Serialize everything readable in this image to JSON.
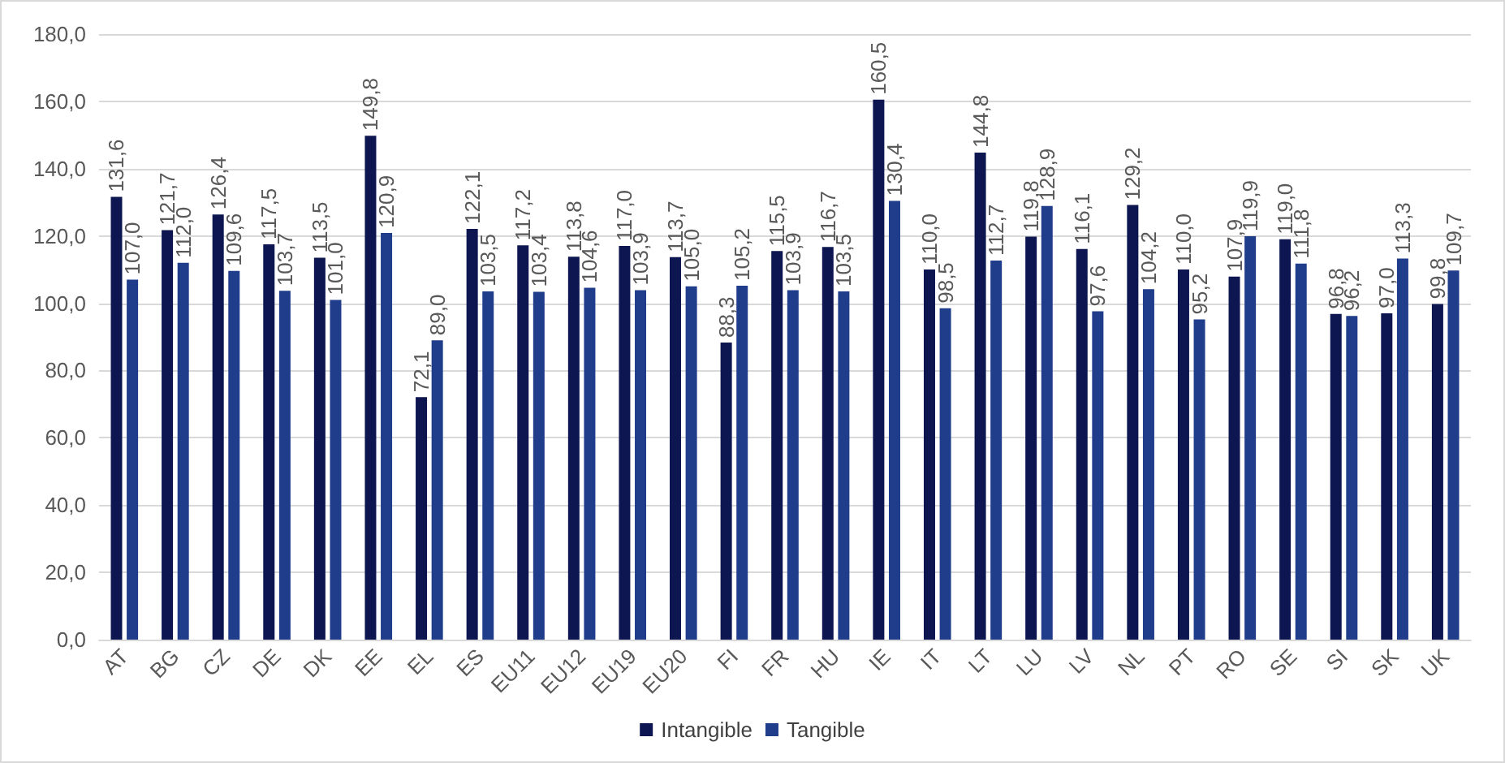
{
  "chart_data": {
    "type": "bar",
    "categories": [
      "AT",
      "BG",
      "CZ",
      "DE",
      "DK",
      "EE",
      "EL",
      "ES",
      "EU11",
      "EU12",
      "EU19",
      "EU20",
      "FI",
      "FR",
      "HU",
      "IE",
      "IT",
      "LT",
      "LU",
      "LV",
      "NL",
      "PT",
      "RO",
      "SE",
      "SI",
      "SK",
      "UK"
    ],
    "series": [
      {
        "name": "Intangible",
        "color": "#0d1650",
        "values": [
          131.6,
          121.7,
          126.4,
          117.5,
          113.5,
          149.8,
          72.1,
          122.1,
          117.2,
          113.8,
          117.0,
          113.7,
          88.3,
          115.5,
          116.7,
          160.5,
          110.0,
          144.8,
          119.8,
          116.1,
          129.2,
          110.0,
          107.9,
          119.0,
          96.8,
          97.0,
          99.8
        ],
        "value_labels": [
          "131,6",
          "121,7",
          "126,4",
          "117,5",
          "113,5",
          "149,8",
          "72,1",
          "122,1",
          "117,2",
          "113,8",
          "117,0",
          "113,7",
          "88,3",
          "115,5",
          "116,7",
          "160,5",
          "110,0",
          "144,8",
          "119,8",
          "116,1",
          "129,2",
          "110,0",
          "107,9",
          "119,0",
          "96,8",
          "97,0",
          "99,8"
        ]
      },
      {
        "name": "Tangible",
        "color": "#1f3d8a",
        "values": [
          107.0,
          112.0,
          109.6,
          103.7,
          101.0,
          120.9,
          89.0,
          103.5,
          103.4,
          104.6,
          103.9,
          105.0,
          105.2,
          103.9,
          103.5,
          130.4,
          98.5,
          112.7,
          128.9,
          97.6,
          104.2,
          95.2,
          119.9,
          111.8,
          96.2,
          113.3,
          109.7
        ],
        "value_labels": [
          "107,0",
          "112,0",
          "109,6",
          "103,7",
          "101,0",
          "120,9",
          "89,0",
          "103,5",
          "103,4",
          "104,6",
          "103,9",
          "105,0",
          "105,2",
          "103,9",
          "103,5",
          "130,4",
          "98,5",
          "112,7",
          "128,9",
          "97,6",
          "104,2",
          "95,2",
          "119,9",
          "111,8",
          "96,2",
          "113,3",
          "109,7"
        ]
      }
    ],
    "ylim": [
      0,
      180
    ],
    "yticks": [
      {
        "value": 0,
        "label": "0,0"
      },
      {
        "value": 20,
        "label": "20,0"
      },
      {
        "value": 40,
        "label": "40,0"
      },
      {
        "value": 60,
        "label": "60,0"
      },
      {
        "value": 80,
        "label": "80,0"
      },
      {
        "value": 100,
        "label": "100,0"
      },
      {
        "value": 120,
        "label": "120,0"
      },
      {
        "value": 140,
        "label": "140,0"
      },
      {
        "value": 160,
        "label": "160,0"
      },
      {
        "value": 180,
        "label": "180,0"
      }
    ],
    "grid": "y",
    "legend": "bottom"
  }
}
